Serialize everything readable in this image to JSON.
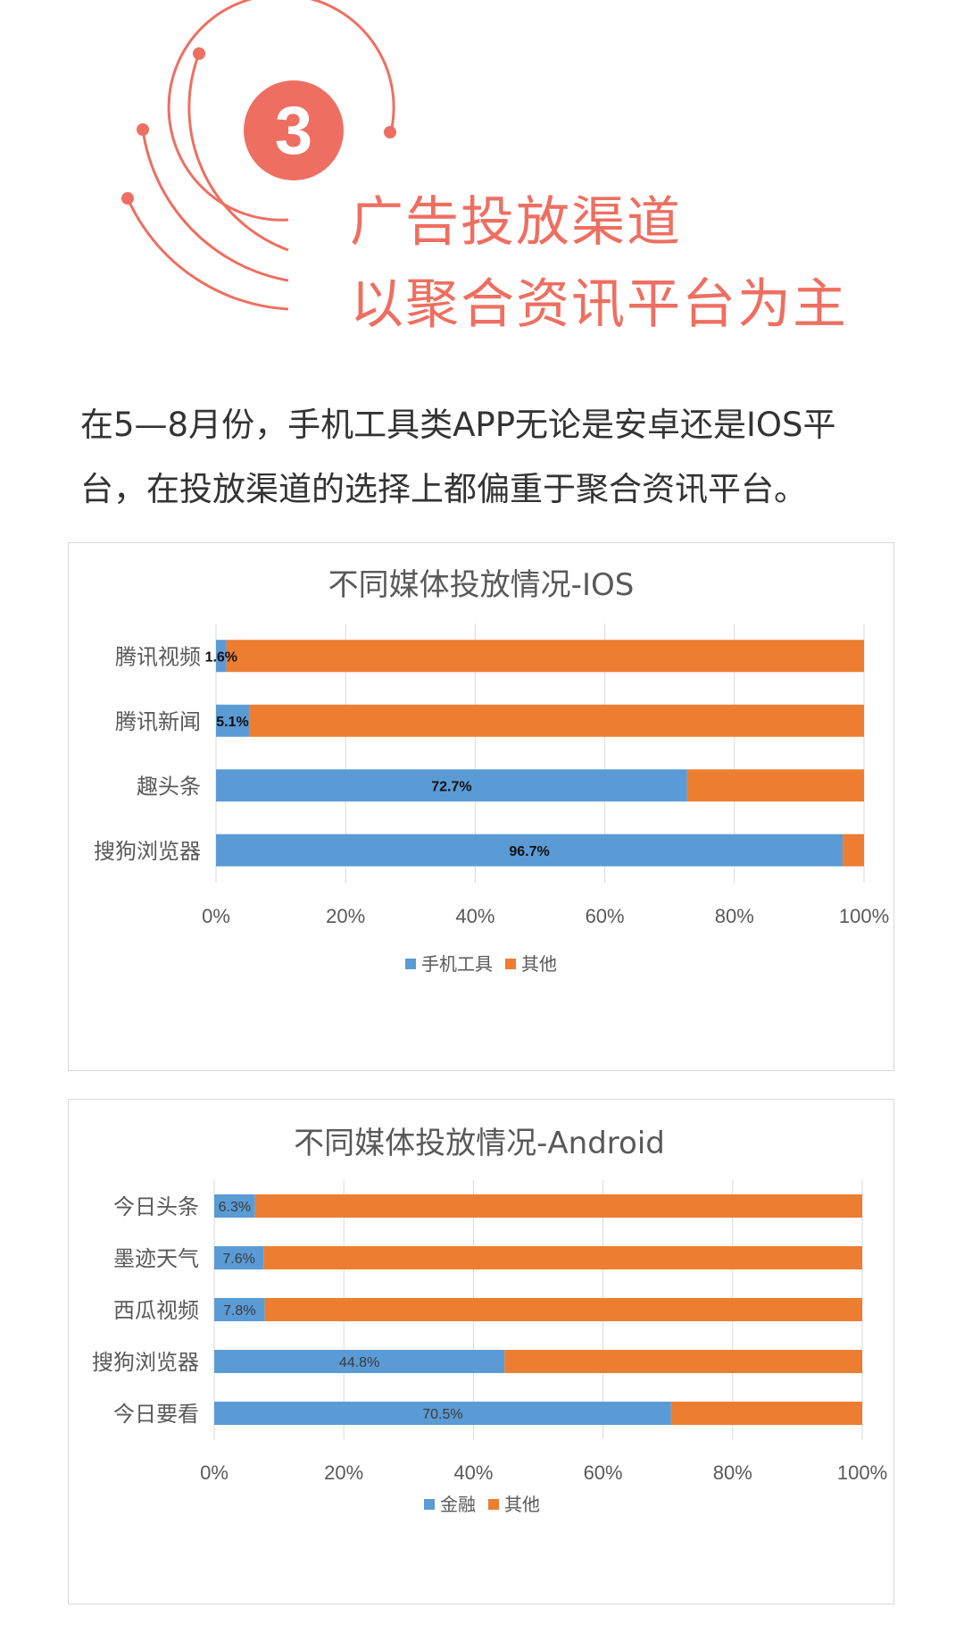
{
  "header": {
    "badge_number": "3",
    "headline_line1": "广告投放渠道",
    "headline_line2": "以聚合资讯平台为主",
    "accent_color": "#ee6f61"
  },
  "intro": {
    "line1": "在5—8月份，手机工具类APP无论是安卓还是IOS平",
    "line2": "台，在投放渠道的选择上都偏重于聚合资讯平台。"
  },
  "chart_data": [
    {
      "type": "bar",
      "orientation": "horizontal",
      "stacked": "percent",
      "title": "不同媒体投放情况-IOS",
      "categories": [
        "腾讯视频",
        "腾讯新闻",
        "趣头条",
        "搜狗浏览器"
      ],
      "series": [
        {
          "name": "手机工具",
          "color": "#5b9bd5",
          "values": [
            1.6,
            5.1,
            72.7,
            96.7
          ]
        },
        {
          "name": "其他",
          "color": "#ed7d31",
          "values": [
            98.4,
            94.9,
            27.3,
            3.3
          ]
        }
      ],
      "data_labels": [
        "1.6%",
        "5.1%",
        "72.7%",
        "96.7%"
      ],
      "x_ticks": [
        "0%",
        "20%",
        "40%",
        "60%",
        "80%",
        "100%"
      ],
      "xlim": [
        0,
        100
      ],
      "grid": true,
      "legend": "bottom"
    },
    {
      "type": "bar",
      "orientation": "horizontal",
      "stacked": "percent",
      "title": "不同媒体投放情况-Android",
      "categories": [
        "今日头条",
        "墨迹天气",
        "西瓜视频",
        "搜狗浏览器",
        "今日要看"
      ],
      "series": [
        {
          "name": "金融",
          "color": "#5b9bd5",
          "values": [
            6.3,
            7.6,
            7.8,
            44.8,
            70.5
          ]
        },
        {
          "name": "其他",
          "color": "#ed7d31",
          "values": [
            93.7,
            92.4,
            92.2,
            55.2,
            29.5
          ]
        }
      ],
      "data_labels": [
        "6.3%",
        "7.6%",
        "7.8%",
        "44.8%",
        "70.5%"
      ],
      "x_ticks": [
        "0%",
        "20%",
        "40%",
        "60%",
        "80%",
        "100%"
      ],
      "xlim": [
        0,
        100
      ],
      "grid": true,
      "legend": "bottom"
    }
  ]
}
